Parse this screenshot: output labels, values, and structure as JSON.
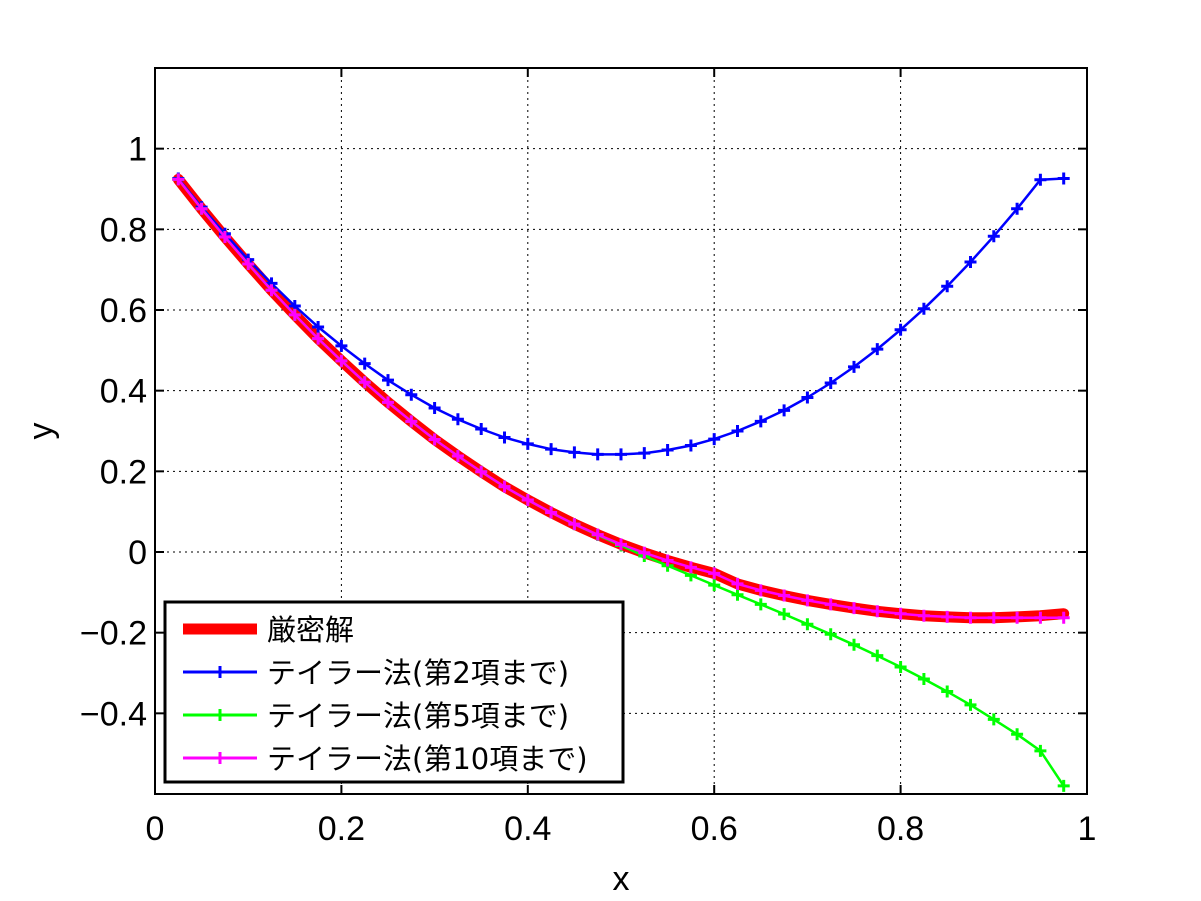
{
  "chart_data": {
    "type": "line",
    "xlabel": "x",
    "ylabel": "y",
    "xlim": [
      0,
      1
    ],
    "ylim": [
      -0.6,
      1.2
    ],
    "xticks": [
      0,
      0.2,
      0.4,
      0.6,
      0.8,
      1
    ],
    "xtick_labels": [
      "0",
      "0.2",
      "0.4",
      "0.6",
      "0.8",
      "1"
    ],
    "yticks": [
      -0.4,
      -0.2,
      0,
      0.2,
      0.4,
      0.6,
      0.8,
      1
    ],
    "ytick_labels": [
      "−0.4",
      "−0.2",
      "0",
      "0.2",
      "0.4",
      "0.6",
      "0.8",
      "1"
    ],
    "grid": true,
    "legend_position": "bottom-left",
    "x": [
      0.025,
      0.05,
      0.075,
      0.1,
      0.125,
      0.15,
      0.175,
      0.2,
      0.225,
      0.25,
      0.275,
      0.3,
      0.325,
      0.35,
      0.375,
      0.4,
      0.425,
      0.45,
      0.475,
      0.5,
      0.525,
      0.55,
      0.575,
      0.6,
      0.625,
      0.65,
      0.675,
      0.7,
      0.725,
      0.75,
      0.775,
      0.8,
      0.825,
      0.85,
      0.875,
      0.9,
      0.925,
      0.95,
      0.975
    ],
    "series": [
      {
        "name": "厳密解",
        "color": "#ff0000",
        "line_width": "thick",
        "marker": "none",
        "values": [
          0.924,
          0.851,
          0.781,
          0.714,
          0.649,
          0.588,
          0.529,
          0.474,
          0.421,
          0.371,
          0.324,
          0.279,
          0.238,
          0.199,
          0.162,
          0.129,
          0.098,
          0.069,
          0.043,
          0.019,
          -0.002,
          -0.021,
          -0.038,
          -0.053,
          -0.079,
          -0.095,
          -0.108,
          -0.12,
          -0.13,
          -0.139,
          -0.147,
          -0.153,
          -0.158,
          -0.161,
          -0.163,
          -0.163,
          -0.161,
          -0.158,
          -0.153
        ]
      },
      {
        "name": "テイラー法(第2項まで)",
        "color": "#0000ff",
        "marker": "+",
        "values": [
          0.926,
          0.855,
          0.789,
          0.725,
          0.666,
          0.61,
          0.558,
          0.511,
          0.467,
          0.426,
          0.39,
          0.357,
          0.329,
          0.305,
          0.284,
          0.268,
          0.255,
          0.247,
          0.242,
          0.242,
          0.245,
          0.253,
          0.264,
          0.28,
          0.3,
          0.324,
          0.351,
          0.383,
          0.419,
          0.459,
          0.503,
          0.551,
          0.603,
          0.659,
          0.719,
          0.783,
          0.851,
          0.923,
          0.926
        ]
      },
      {
        "name": "テイラー法(第5項まで)",
        "color": "#00ff00",
        "marker": "+",
        "values": [
          0.924,
          0.851,
          0.781,
          0.714,
          0.649,
          0.588,
          0.529,
          0.474,
          0.421,
          0.371,
          0.324,
          0.279,
          0.238,
          0.199,
          0.162,
          0.129,
          0.098,
          0.069,
          0.042,
          0.016,
          -0.01,
          -0.034,
          -0.058,
          -0.082,
          -0.106,
          -0.13,
          -0.154,
          -0.179,
          -0.204,
          -0.23,
          -0.257,
          -0.285,
          -0.315,
          -0.346,
          -0.379,
          -0.415,
          -0.452,
          -0.493,
          -0.58
        ]
      },
      {
        "name": "テイラー法(第10項まで)",
        "color": "#ff00ff",
        "marker": "+",
        "values": [
          0.924,
          0.851,
          0.781,
          0.714,
          0.649,
          0.588,
          0.529,
          0.474,
          0.421,
          0.371,
          0.324,
          0.279,
          0.238,
          0.199,
          0.162,
          0.129,
          0.098,
          0.069,
          0.043,
          0.019,
          -0.002,
          -0.021,
          -0.038,
          -0.053,
          -0.079,
          -0.095,
          -0.108,
          -0.12,
          -0.13,
          -0.139,
          -0.147,
          -0.153,
          -0.158,
          -0.161,
          -0.163,
          -0.163,
          -0.163,
          -0.163,
          -0.163
        ]
      }
    ]
  }
}
